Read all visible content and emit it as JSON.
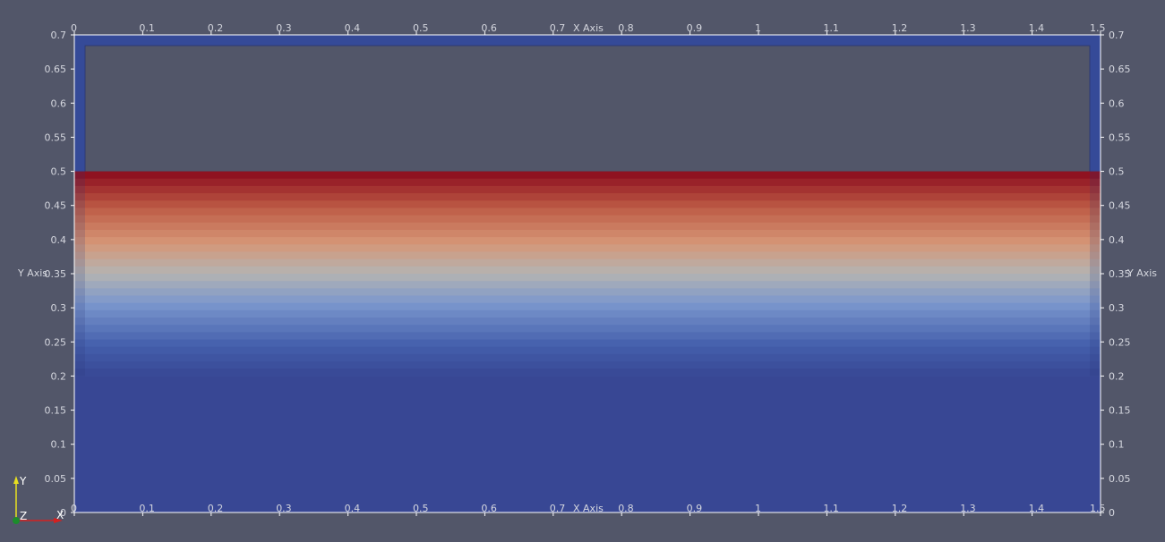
{
  "colors": {
    "background": "#525669",
    "frame": "#354a98",
    "frame_border": "#ffffff",
    "hot": "#8a0a1c",
    "cold": "#384794",
    "tick_text": "#d4d6de"
  },
  "axes": {
    "x_label": "X Axis",
    "y_label": "Y Axis",
    "x_ticks": [
      "0",
      "0.1",
      "0.2",
      "0.3",
      "0.4",
      "0.5",
      "0.6",
      "0.7",
      "0.8",
      "0.9",
      "1",
      "1.1",
      "1.2",
      "1.3",
      "1.4",
      "1.5"
    ],
    "y_ticks": [
      "0",
      "0.05",
      "0.1",
      "0.15",
      "0.2",
      "0.25",
      "0.3",
      "0.35",
      "0.4",
      "0.45",
      "0.5",
      "0.55",
      "0.6",
      "0.65",
      "0.7"
    ],
    "x_range": [
      0,
      1.5
    ],
    "y_range": [
      0,
      0.7
    ]
  },
  "field": {
    "colormap": "cool-to-warm",
    "gradient_from_y": 0.2,
    "gradient_to_y": 0.5,
    "empty_above_y": 0.5,
    "bands": 28
  },
  "orientation": {
    "x_label": "X",
    "y_label": "Y",
    "z_label": "Z"
  }
}
